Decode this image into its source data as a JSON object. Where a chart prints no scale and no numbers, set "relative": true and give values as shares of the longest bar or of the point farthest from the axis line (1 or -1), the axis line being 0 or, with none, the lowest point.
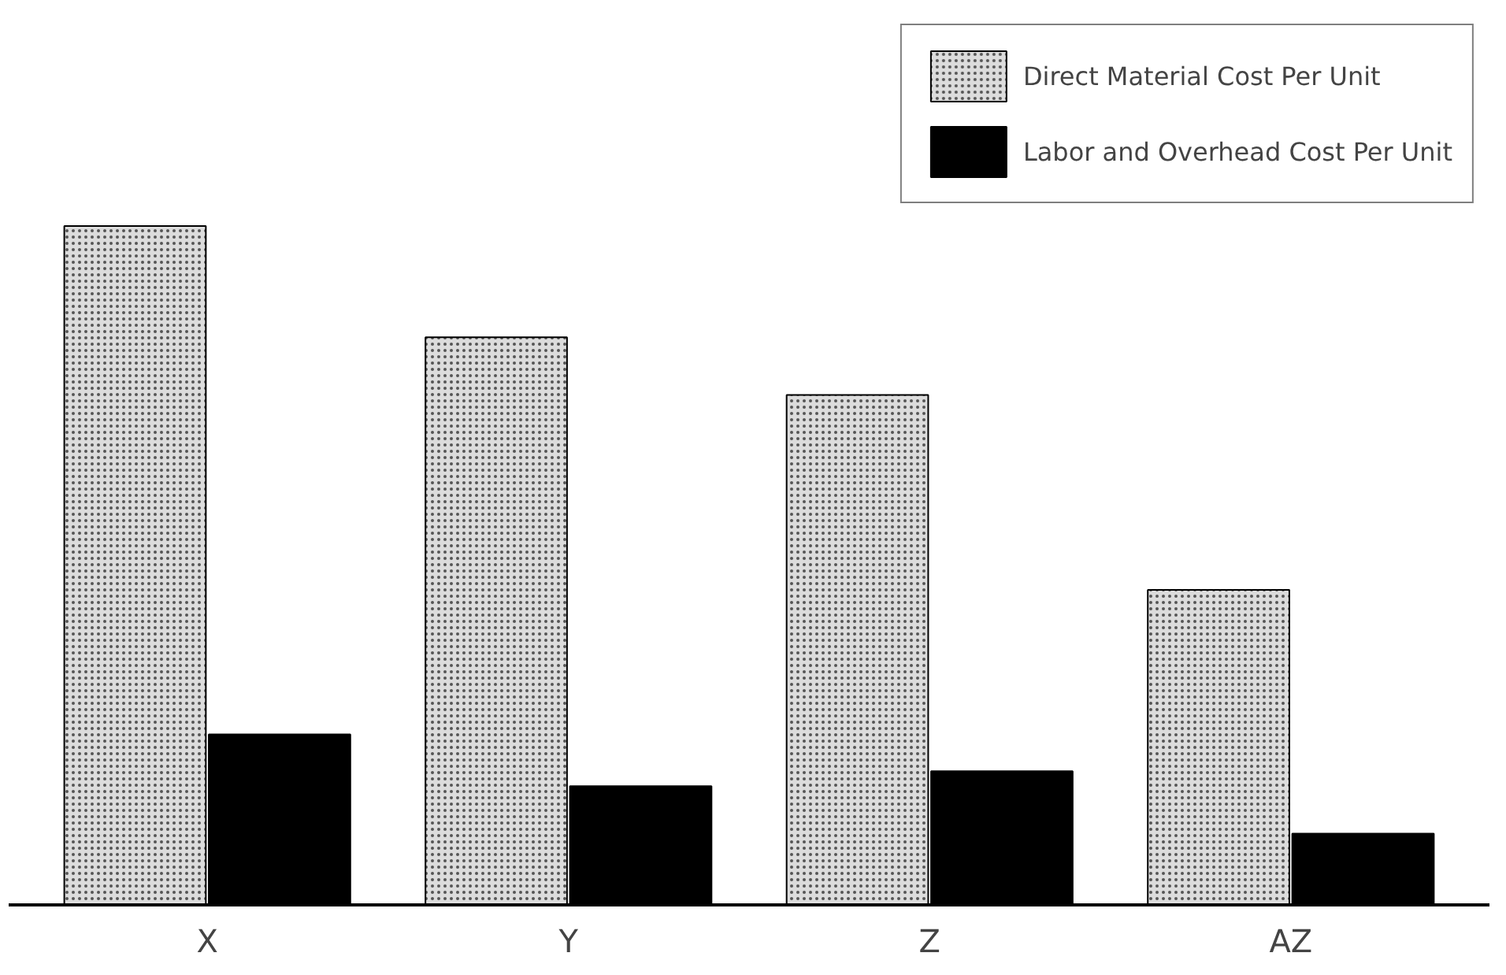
{
  "chart_data": {
    "type": "bar",
    "relative": true,
    "categories": [
      "X",
      "Y",
      "Z",
      "AZ"
    ],
    "series": [
      {
        "name": "Direct Material Cost Per Unit",
        "color": "#dcdcdc",
        "values": [
          1,
          0.836,
          0.751,
          0.464
        ]
      },
      {
        "name": "Labor and Overhead Cost Per Unit",
        "color": "#000000",
        "values": [
          0.251,
          0.175,
          0.197,
          0.105
        ]
      }
    ],
    "legend": "top right",
    "grid": false
  }
}
